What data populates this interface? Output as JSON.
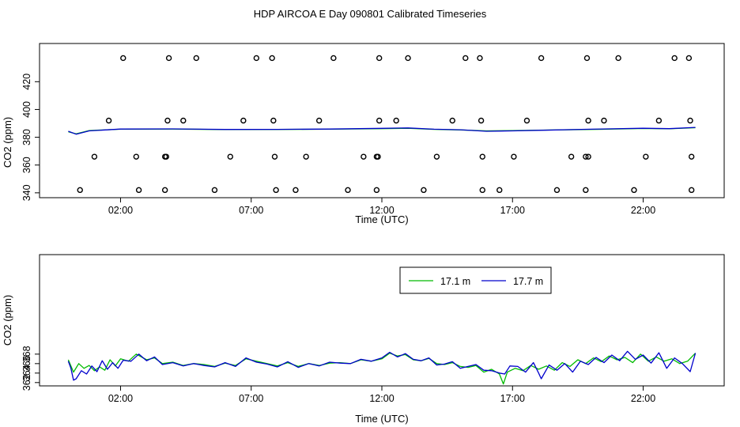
{
  "title": "HDP AIRCOA E  Day 090801  Calibrated Timeseries",
  "colors": {
    "green": "#00bb00",
    "blue": "#0000cc",
    "axis": "#000000"
  },
  "chart_data": [
    {
      "type": "line",
      "xlabel": "Time (UTC)",
      "ylabel": "CO2 (ppm)",
      "xlim": [
        -1.1,
        25.1
      ],
      "ylim": [
        336.5,
        447.5
      ],
      "x_ticks": [
        2,
        7,
        12,
        17,
        22
      ],
      "x_tick_labels": [
        "02:00",
        "07:00",
        "12:00",
        "17:00",
        "22:00"
      ],
      "y_ticks": [
        340,
        360,
        380,
        400,
        420
      ],
      "y_tick_labels": [
        "340",
        "360",
        "380",
        "400",
        "420"
      ],
      "series": [
        {
          "color": "#00bb00",
          "x": [
            0.0,
            0.3,
            0.8,
            2.0,
            4.0,
            6.0,
            8.0,
            10.0,
            12.0,
            13.0,
            14.0,
            15.0,
            16.0,
            17.0,
            18.0,
            20.0,
            22.0,
            23.0,
            24.0
          ],
          "y": [
            384,
            382.5,
            384.8,
            385.8,
            385.9,
            385.5,
            385.6,
            385.8,
            386.2,
            386.5,
            385.7,
            385.3,
            384.6,
            384.8,
            385.1,
            385.6,
            386.3,
            386.1,
            386.9
          ]
        },
        {
          "color": "#0000cc",
          "x": [
            0.0,
            0.3,
            0.8,
            2.0,
            4.0,
            6.0,
            8.0,
            10.0,
            12.0,
            13.0,
            14.0,
            15.0,
            16.0,
            17.0,
            18.0,
            20.0,
            22.0,
            23.0,
            24.0
          ],
          "y": [
            384.3,
            382.2,
            384.6,
            385.9,
            386.0,
            385.6,
            385.7,
            385.9,
            386.4,
            386.7,
            385.8,
            385.4,
            384.3,
            384.6,
            385.0,
            385.8,
            386.5,
            386.2,
            387.1
          ]
        }
      ],
      "scatter": {
        "marker": "open-circle",
        "x": [
          2.1,
          3.85,
          4.9,
          7.2,
          7.8,
          10.15,
          11.9,
          13.0,
          15.2,
          15.75,
          18.1,
          19.85,
          21.05,
          23.2,
          23.75,
          1.55,
          3.8,
          4.4,
          6.7,
          7.85,
          9.6,
          11.9,
          12.55,
          14.7,
          15.8,
          17.55,
          19.9,
          20.5,
          22.6,
          23.8,
          1.0,
          2.6,
          3.7,
          3.75,
          6.2,
          7.9,
          9.1,
          11.3,
          11.8,
          11.85,
          14.1,
          15.85,
          17.05,
          19.25,
          19.8,
          19.9,
          22.1,
          23.85,
          0.45,
          2.7,
          3.7,
          5.6,
          7.95,
          8.7,
          10.7,
          11.8,
          13.6,
          15.85,
          16.5,
          18.7,
          19.8,
          21.65,
          23.85
        ],
        "y": [
          437,
          437,
          437,
          437,
          437,
          437,
          437,
          437,
          437,
          437,
          437,
          437,
          437,
          437,
          437,
          392,
          392,
          392,
          392,
          392,
          392,
          392,
          392,
          392,
          392,
          392,
          392,
          392,
          392,
          392,
          366,
          366,
          366,
          366,
          366,
          366,
          366,
          366,
          366,
          366,
          366,
          366,
          366,
          366,
          366,
          366,
          366,
          366,
          342,
          342,
          342,
          342,
          342,
          342,
          342,
          342,
          342,
          342,
          342,
          342,
          342,
          342,
          342
        ]
      }
    },
    {
      "type": "line",
      "xlabel": "Time (UTC)",
      "ylabel": "CO2 (ppm)",
      "xlim": [
        -1.1,
        25.1
      ],
      "ylim": [
        361.3,
        389.0
      ],
      "x_ticks": [
        2,
        7,
        12,
        17,
        22
      ],
      "x_tick_labels": [
        "02:00",
        "07:00",
        "12:00",
        "17:00",
        "22:00"
      ],
      "y_ticks": [
        362,
        364,
        366,
        368
      ],
      "y_tick_labels": [
        "362",
        "364",
        "366",
        "368"
      ],
      "legend": {
        "placement": "top-center",
        "entries": [
          "17.1 m",
          "17.7 m"
        ]
      },
      "series": [
        {
          "name": "17.1 m",
          "color": "#00bb00",
          "x": [
            0.0,
            0.2,
            0.4,
            0.6,
            0.8,
            1.0,
            1.2,
            1.4,
            1.6,
            1.8,
            2.0,
            2.3,
            2.6,
            3.0,
            3.3,
            3.6,
            4.0,
            4.4,
            4.8,
            5.2,
            5.6,
            6.0,
            6.4,
            6.8,
            7.2,
            7.6,
            8.0,
            8.4,
            8.8,
            9.2,
            9.6,
            10.0,
            10.4,
            10.8,
            11.2,
            11.6,
            12.0,
            12.3,
            12.6,
            12.9,
            13.2,
            13.5,
            13.8,
            14.1,
            14.4,
            14.7,
            15.0,
            15.3,
            15.6,
            15.9,
            16.2,
            16.5,
            16.65,
            16.8,
            17.1,
            17.4,
            17.7,
            18.0,
            18.3,
            18.6,
            18.9,
            19.2,
            19.5,
            19.8,
            20.1,
            20.4,
            20.7,
            21.0,
            21.3,
            21.6,
            21.9,
            22.2,
            22.5,
            22.8,
            23.1,
            23.4,
            23.7,
            24.0
          ],
          "y": [
            366.8,
            364.2,
            366.0,
            365.0,
            365.6,
            364.5,
            365.3,
            364.6,
            366.8,
            365.5,
            367.0,
            366.5,
            368.0,
            366.8,
            367.2,
            366.0,
            366.3,
            365.6,
            366.0,
            365.8,
            365.4,
            366.1,
            365.6,
            367.0,
            366.5,
            366.0,
            365.5,
            366.2,
            365.4,
            366.0,
            365.6,
            366.1,
            366.2,
            366.0,
            366.8,
            366.5,
            367.0,
            368.2,
            367.6,
            367.9,
            366.8,
            366.6,
            367.1,
            366.0,
            365.8,
            366.2,
            365.4,
            365.2,
            365.6,
            364.2,
            364.8,
            363.8,
            361.7,
            364.2,
            365.0,
            364.5,
            365.6,
            364.8,
            365.5,
            364.6,
            366.2,
            365.4,
            366.8,
            366.0,
            367.2,
            366.4,
            367.6,
            366.8,
            367.3,
            366.2,
            368.0,
            366.5,
            367.4,
            366.5,
            367.0,
            366.0,
            366.5,
            368.2
          ]
        },
        {
          "name": "17.7 m",
          "color": "#0000cc",
          "x": [
            0.0,
            0.1,
            0.2,
            0.3,
            0.5,
            0.7,
            0.9,
            1.1,
            1.3,
            1.5,
            1.7,
            1.9,
            2.1,
            2.4,
            2.7,
            3.0,
            3.3,
            3.6,
            4.0,
            4.4,
            4.8,
            5.2,
            5.6,
            6.0,
            6.4,
            6.8,
            7.2,
            7.6,
            8.0,
            8.4,
            8.8,
            9.2,
            9.6,
            10.0,
            10.4,
            10.8,
            11.2,
            11.6,
            12.0,
            12.3,
            12.6,
            12.9,
            13.2,
            13.5,
            13.8,
            14.1,
            14.4,
            14.7,
            15.0,
            15.3,
            15.6,
            15.9,
            16.2,
            16.5,
            16.7,
            16.9,
            17.2,
            17.5,
            17.8,
            18.0,
            18.1,
            18.4,
            18.7,
            19.0,
            19.3,
            19.6,
            19.9,
            20.2,
            20.5,
            20.8,
            21.1,
            21.4,
            21.7,
            22.0,
            22.3,
            22.6,
            22.9,
            23.2,
            23.5,
            23.8,
            24.0
          ],
          "y": [
            366.5,
            365.0,
            362.5,
            362.8,
            364.5,
            363.8,
            365.5,
            364.3,
            366.6,
            364.8,
            366.2,
            365.0,
            366.7,
            366.5,
            368.0,
            366.6,
            367.4,
            365.8,
            366.2,
            365.5,
            366.0,
            365.6,
            365.3,
            366.2,
            365.4,
            367.2,
            366.3,
            365.9,
            365.3,
            366.4,
            365.2,
            366.0,
            365.5,
            366.3,
            366.1,
            366.0,
            366.9,
            366.5,
            367.2,
            368.4,
            367.4,
            368.1,
            366.9,
            366.6,
            367.2,
            365.7,
            365.9,
            366.4,
            365.0,
            365.4,
            365.8,
            364.6,
            364.5,
            364.0,
            363.8,
            365.5,
            365.4,
            364.2,
            366.2,
            364.0,
            362.8,
            365.7,
            364.6,
            366.0,
            364.2,
            366.5,
            365.8,
            367.3,
            366.2,
            367.8,
            366.6,
            368.6,
            366.9,
            367.8,
            366.1,
            368.3,
            365.0,
            367.2,
            366.0,
            364.3,
            368.2
          ]
        }
      ]
    }
  ]
}
